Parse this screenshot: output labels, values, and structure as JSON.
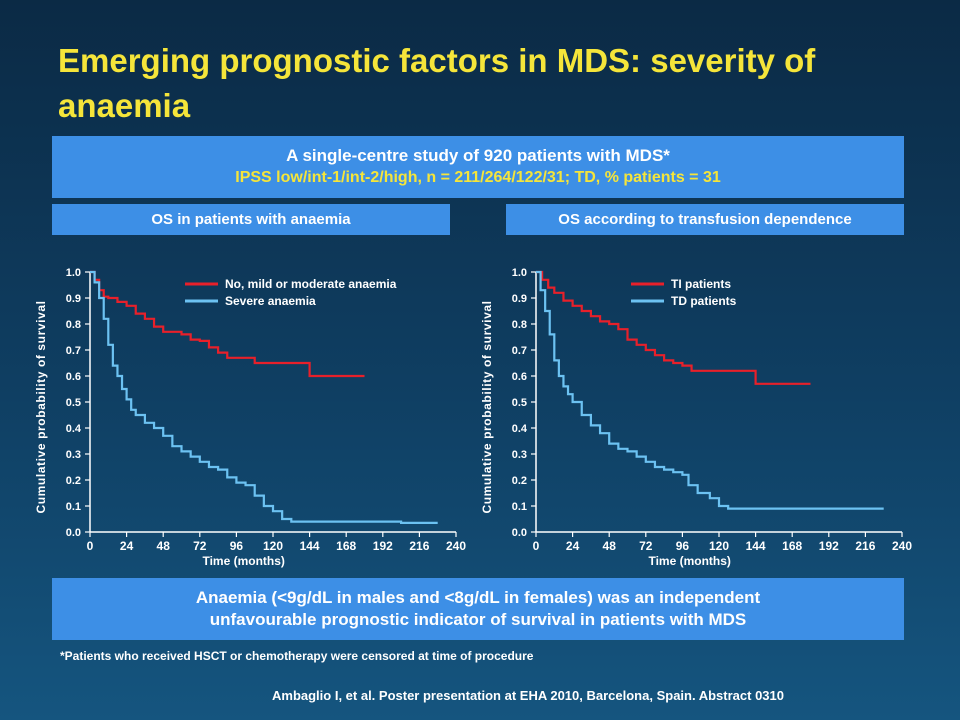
{
  "slide": {
    "title": "Emerging prognostic factors in MDS: severity of anaemia",
    "study_line1": "A single-centre study of 920 patients with MDS*",
    "study_line2": "IPSS low/int-1/int-2/high, n = 211/264/122/31; TD, % patients = 31",
    "left_header": "OS in patients with anaemia",
    "right_header": "OS according to transfusion dependence",
    "conclusion_line1": "Anaemia (<9g/dL in males and <8g/dL in females) was an independent",
    "conclusion_line2": "unfavourable prognostic indicator of survival in patients with MDS",
    "footnote": "*Patients who received HSCT or chemotherapy were censored at time of procedure",
    "reference": "Ambaglio I, et al. Poster presentation at EHA 2010, Barcelona, Spain. Abstract 0310"
  },
  "colors": {
    "red": "#e8202a",
    "blue": "#6cc2f2",
    "title_yellow": "#f5e53a",
    "box_blue": "#3d8fe6"
  },
  "chart_data": [
    {
      "type": "line",
      "xlabel": "Time (months)",
      "ylabel": "Cumulative probability of survival",
      "xlim": [
        0,
        240
      ],
      "ylim": [
        0,
        1.0
      ],
      "x_ticks": [
        "0",
        "24",
        "48",
        "72",
        "96",
        "120",
        "144",
        "168",
        "192",
        "216",
        "240"
      ],
      "y_ticks": [
        "0.0",
        "0.1",
        "0.2",
        "0.3",
        "0.4",
        "0.5",
        "0.6",
        "0.7",
        "0.8",
        "0.9",
        "1.0"
      ],
      "legend_position": "top-right",
      "series": [
        {
          "name": "No, mild or moderate anaemia",
          "color": "#e8202a",
          "points": [
            [
              0,
              1.0
            ],
            [
              3,
              0.97
            ],
            [
              6,
              0.93
            ],
            [
              9,
              0.905
            ],
            [
              12,
              0.9
            ],
            [
              18,
              0.885
            ],
            [
              24,
              0.87
            ],
            [
              30,
              0.84
            ],
            [
              36,
              0.82
            ],
            [
              42,
              0.79
            ],
            [
              48,
              0.77
            ],
            [
              60,
              0.76
            ],
            [
              66,
              0.74
            ],
            [
              72,
              0.735
            ],
            [
              78,
              0.71
            ],
            [
              84,
              0.69
            ],
            [
              90,
              0.67
            ],
            [
              96,
              0.67
            ],
            [
              108,
              0.67
            ],
            [
              108,
              0.65
            ],
            [
              132,
              0.65
            ],
            [
              144,
              0.65
            ],
            [
              144,
              0.6
            ],
            [
              168,
              0.6
            ],
            [
              180,
              0.6
            ]
          ]
        },
        {
          "name": "Severe anaemia",
          "color": "#6cc2f2",
          "points": [
            [
              0,
              1.0
            ],
            [
              3,
              0.96
            ],
            [
              6,
              0.9
            ],
            [
              9,
              0.82
            ],
            [
              12,
              0.72
            ],
            [
              15,
              0.64
            ],
            [
              18,
              0.6
            ],
            [
              21,
              0.55
            ],
            [
              24,
              0.51
            ],
            [
              27,
              0.47
            ],
            [
              30,
              0.45
            ],
            [
              36,
              0.42
            ],
            [
              42,
              0.4
            ],
            [
              48,
              0.37
            ],
            [
              54,
              0.33
            ],
            [
              60,
              0.31
            ],
            [
              66,
              0.29
            ],
            [
              72,
              0.27
            ],
            [
              78,
              0.25
            ],
            [
              84,
              0.24
            ],
            [
              90,
              0.21
            ],
            [
              96,
              0.19
            ],
            [
              102,
              0.18
            ],
            [
              108,
              0.14
            ],
            [
              114,
              0.1
            ],
            [
              120,
              0.08
            ],
            [
              126,
              0.05
            ],
            [
              132,
              0.04
            ],
            [
              168,
              0.04
            ],
            [
              204,
              0.035
            ],
            [
              228,
              0.035
            ]
          ]
        }
      ]
    },
    {
      "type": "line",
      "xlabel": "Time (months)",
      "ylabel": "Cumulative probability of survival",
      "xlim": [
        0,
        240
      ],
      "ylim": [
        0,
        1.0
      ],
      "x_ticks": [
        "0",
        "24",
        "48",
        "72",
        "96",
        "120",
        "144",
        "168",
        "192",
        "216",
        "240"
      ],
      "y_ticks": [
        "0.0",
        "0.1",
        "0.2",
        "0.3",
        "0.4",
        "0.5",
        "0.6",
        "0.7",
        "0.8",
        "0.9",
        "1.0"
      ],
      "legend_position": "top-right",
      "series": [
        {
          "name": "TI patients",
          "color": "#e8202a",
          "points": [
            [
              0,
              1.0
            ],
            [
              4,
              0.97
            ],
            [
              8,
              0.94
            ],
            [
              12,
              0.92
            ],
            [
              18,
              0.89
            ],
            [
              24,
              0.87
            ],
            [
              30,
              0.85
            ],
            [
              36,
              0.83
            ],
            [
              42,
              0.81
            ],
            [
              48,
              0.8
            ],
            [
              54,
              0.78
            ],
            [
              60,
              0.74
            ],
            [
              66,
              0.72
            ],
            [
              72,
              0.7
            ],
            [
              78,
              0.68
            ],
            [
              84,
              0.66
            ],
            [
              90,
              0.65
            ],
            [
              96,
              0.64
            ],
            [
              102,
              0.62
            ],
            [
              120,
              0.62
            ],
            [
              144,
              0.62
            ],
            [
              144,
              0.57
            ],
            [
              168,
              0.57
            ],
            [
              180,
              0.57
            ]
          ]
        },
        {
          "name": "TD patients",
          "color": "#6cc2f2",
          "points": [
            [
              0,
              1.0
            ],
            [
              3,
              0.93
            ],
            [
              6,
              0.85
            ],
            [
              9,
              0.76
            ],
            [
              12,
              0.66
            ],
            [
              15,
              0.6
            ],
            [
              18,
              0.56
            ],
            [
              21,
              0.53
            ],
            [
              24,
              0.5
            ],
            [
              30,
              0.45
            ],
            [
              36,
              0.41
            ],
            [
              42,
              0.38
            ],
            [
              48,
              0.34
            ],
            [
              54,
              0.32
            ],
            [
              60,
              0.31
            ],
            [
              66,
              0.29
            ],
            [
              72,
              0.27
            ],
            [
              78,
              0.25
            ],
            [
              84,
              0.24
            ],
            [
              90,
              0.23
            ],
            [
              96,
              0.22
            ],
            [
              100,
              0.18
            ],
            [
              106,
              0.15
            ],
            [
              114,
              0.13
            ],
            [
              120,
              0.1
            ],
            [
              126,
              0.09
            ],
            [
              168,
              0.09
            ],
            [
              228,
              0.09
            ]
          ]
        }
      ]
    }
  ]
}
